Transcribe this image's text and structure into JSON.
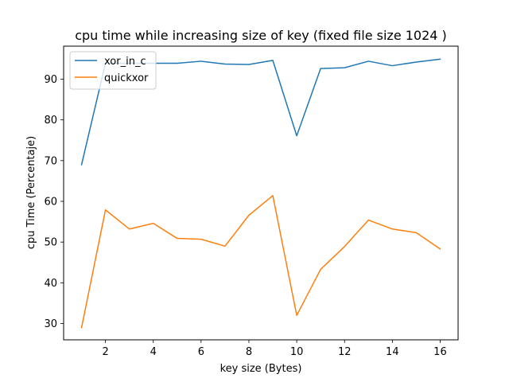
{
  "chart_data": {
    "type": "line",
    "title": "cpu time while increasing size of key (fixed file size 1024 )",
    "xlabel": "key size (Bytes)",
    "ylabel": "cpu Time (Percentaje)",
    "x": [
      1,
      2,
      3,
      4,
      5,
      6,
      7,
      8,
      9,
      10,
      11,
      12,
      13,
      14,
      15,
      16
    ],
    "xlim": [
      0.25,
      16.75
    ],
    "ylim": [
      26.0,
      98.1
    ],
    "xticks": [
      2,
      4,
      6,
      8,
      10,
      12,
      14,
      16
    ],
    "yticks": [
      30,
      40,
      50,
      60,
      70,
      80,
      90
    ],
    "grid": false,
    "legend_position": "top-left",
    "series": [
      {
        "name": "xor_in_c",
        "color": "#1f77b4",
        "values": [
          69.0,
          93.9,
          93.9,
          93.9,
          93.9,
          94.4,
          93.7,
          93.6,
          94.6,
          76.1,
          92.6,
          92.8,
          94.4,
          93.3,
          94.2,
          94.9
        ]
      },
      {
        "name": "quickxor",
        "color": "#ff7f0e",
        "values": [
          29.0,
          57.9,
          53.2,
          54.6,
          50.9,
          50.7,
          49.0,
          56.6,
          61.4,
          32.0,
          43.3,
          48.9,
          55.4,
          53.2,
          52.3,
          48.3
        ]
      }
    ]
  }
}
